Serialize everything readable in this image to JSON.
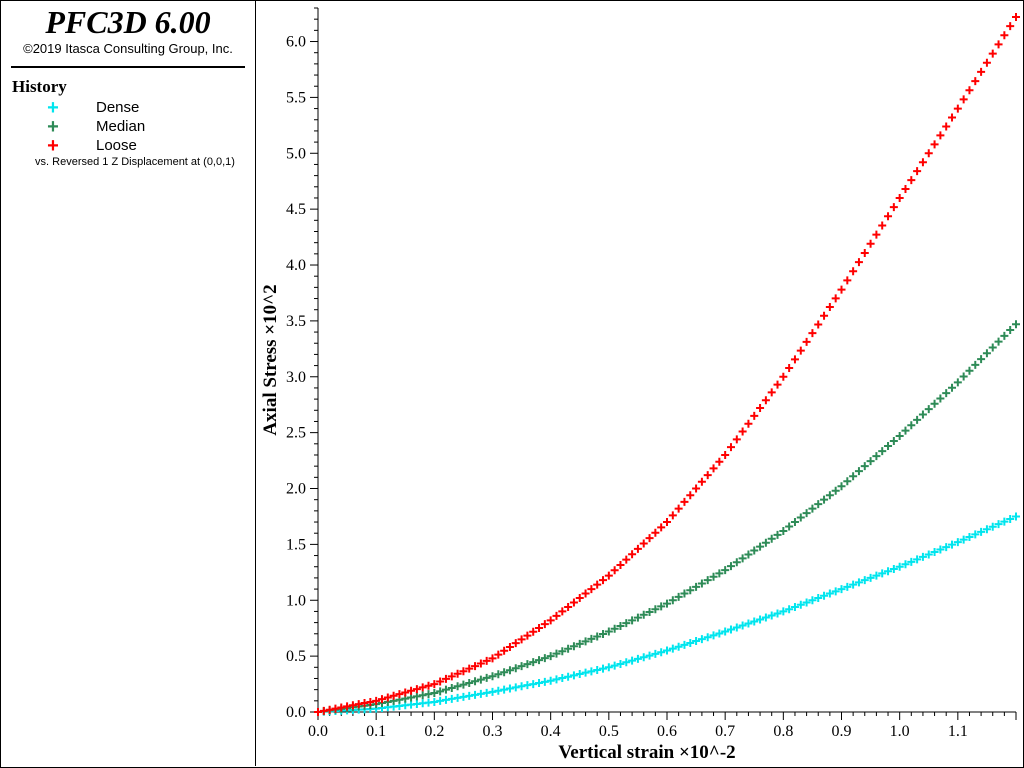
{
  "header": {
    "app_title": "PFC3D 6.00",
    "copyright": "©2019 Itasca Consulting Group, Inc."
  },
  "legend": {
    "heading": "History",
    "items": [
      {
        "label": "Dense",
        "color": "#00e5ee",
        "marker": "+"
      },
      {
        "label": "Median",
        "color": "#2e8b57",
        "marker": "+"
      },
      {
        "label": "Loose",
        "color": "#ff0000",
        "marker": "+"
      }
    ],
    "vs_text": "vs. Reversed 1 Z Displacement at (0,0,1)"
  },
  "chart_data": {
    "type": "scatter",
    "xlabel": "Vertical strain ×10^-2",
    "ylabel": "Axial Stress ×10^2",
    "xlim": [
      0,
      1.2
    ],
    "ylim": [
      0,
      6.3
    ],
    "xticks": [
      "0.0",
      "0.1",
      "0.2",
      "0.3",
      "0.4",
      "0.5",
      "0.6",
      "0.7",
      "0.8",
      "0.9",
      "1.0",
      "1.1"
    ],
    "yticks": [
      "0.0",
      "0.5",
      "1.0",
      "1.5",
      "2.0",
      "2.5",
      "3.0",
      "3.5",
      "4.0",
      "4.5",
      "5.0",
      "5.5",
      "6.0"
    ],
    "grid": false,
    "marker": "+",
    "series": [
      {
        "name": "Dense",
        "color": "#00e5ee",
        "x": [
          0.0,
          0.1,
          0.2,
          0.3,
          0.4,
          0.5,
          0.6,
          0.7,
          0.8,
          0.9,
          1.0,
          1.1,
          1.2
        ],
        "y": [
          0.0,
          0.03,
          0.09,
          0.18,
          0.28,
          0.4,
          0.55,
          0.72,
          0.9,
          1.1,
          1.3,
          1.52,
          1.75
        ]
      },
      {
        "name": "Median",
        "color": "#2e8b57",
        "x": [
          0.0,
          0.1,
          0.2,
          0.3,
          0.4,
          0.5,
          0.6,
          0.7,
          0.8,
          0.9,
          1.0,
          1.1,
          1.2
        ],
        "y": [
          0.0,
          0.07,
          0.17,
          0.32,
          0.5,
          0.72,
          0.97,
          1.27,
          1.62,
          2.02,
          2.47,
          2.95,
          3.47
        ]
      },
      {
        "name": "Loose",
        "color": "#ff0000",
        "x": [
          0.0,
          0.1,
          0.2,
          0.3,
          0.4,
          0.5,
          0.6,
          0.7,
          0.8,
          0.9,
          1.0,
          1.1,
          1.2
        ],
        "y": [
          0.0,
          0.1,
          0.25,
          0.48,
          0.82,
          1.22,
          1.7,
          2.3,
          3.0,
          3.78,
          4.6,
          5.4,
          6.22
        ]
      }
    ]
  }
}
